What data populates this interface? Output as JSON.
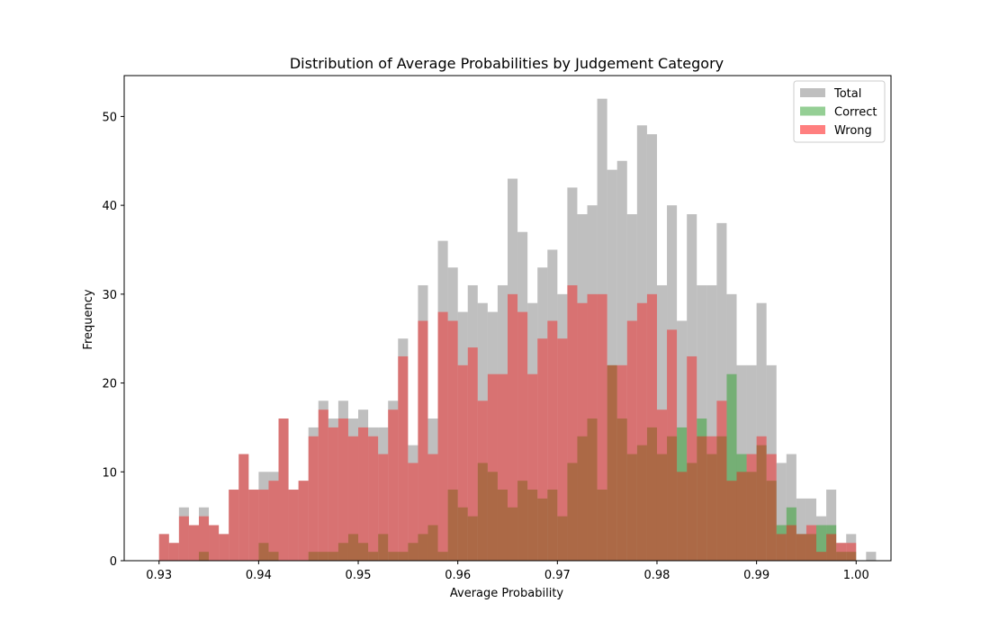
{
  "chart_data": {
    "type": "bar",
    "title": "Distribution of Average Probabilities by Judgement Category",
    "xlabel": "Average Probability",
    "ylabel": "Frequency",
    "xlim": [
      0.9265,
      1.0035
    ],
    "ylim": [
      0,
      54.6
    ],
    "xticks": [
      0.93,
      0.94,
      0.95,
      0.96,
      0.97,
      0.98,
      0.99,
      1.0
    ],
    "xtick_labels": [
      "0.93",
      "0.94",
      "0.95",
      "0.96",
      "0.97",
      "0.98",
      "0.99",
      "1.00"
    ],
    "yticks": [
      0,
      10,
      20,
      30,
      40,
      50
    ],
    "ytick_labels": [
      "0",
      "10",
      "20",
      "30",
      "40",
      "50"
    ],
    "bin_start": 0.93,
    "bin_width": 0.001,
    "legend_position": "upper right",
    "series": [
      {
        "name": "Total",
        "color": "#808080",
        "values": [
          3,
          2,
          6,
          4,
          6,
          4,
          3,
          8,
          12,
          8,
          10,
          10,
          16,
          8,
          9,
          15,
          18,
          16,
          18,
          16,
          17,
          15,
          15,
          18,
          25,
          13,
          31,
          16,
          36,
          33,
          28,
          31,
          29,
          28,
          31,
          43,
          37,
          29,
          33,
          35,
          30,
          42,
          39,
          40,
          52,
          44,
          45,
          39,
          49,
          48,
          31,
          40,
          27,
          39,
          31,
          31,
          38,
          30,
          22,
          22,
          29,
          22,
          11,
          12,
          7,
          7,
          5,
          8,
          2,
          3,
          0,
          1
        ]
      },
      {
        "name": "Correct",
        "color": "#2ca02c",
        "values": [
          0,
          0,
          0,
          0,
          1,
          0,
          0,
          0,
          0,
          0,
          2,
          1,
          0,
          0,
          0,
          1,
          1,
          1,
          2,
          3,
          2,
          1,
          3,
          1,
          1,
          2,
          3,
          4,
          1,
          8,
          6,
          5,
          11,
          10,
          8,
          6,
          9,
          8,
          7,
          8,
          5,
          11,
          14,
          16,
          8,
          22,
          16,
          12,
          13,
          15,
          12,
          14,
          15,
          11,
          16,
          12,
          14,
          21,
          12,
          10,
          13,
          9,
          4,
          6,
          3,
          3,
          4,
          4,
          1,
          1,
          0,
          0
        ]
      },
      {
        "name": "Wrong",
        "color": "#ff0000",
        "values": [
          3,
          2,
          5,
          4,
          5,
          4,
          3,
          8,
          12,
          8,
          8,
          9,
          16,
          8,
          9,
          14,
          17,
          15,
          16,
          14,
          15,
          14,
          12,
          17,
          23,
          11,
          27,
          12,
          28,
          27,
          22,
          24,
          18,
          21,
          21,
          30,
          28,
          21,
          25,
          27,
          25,
          31,
          29,
          30,
          30,
          22,
          22,
          27,
          29,
          30,
          17,
          26,
          10,
          23,
          14,
          14,
          18,
          9,
          10,
          12,
          14,
          12,
          3,
          4,
          3,
          4,
          1,
          3,
          2,
          2,
          0,
          0
        ]
      }
    ]
  }
}
